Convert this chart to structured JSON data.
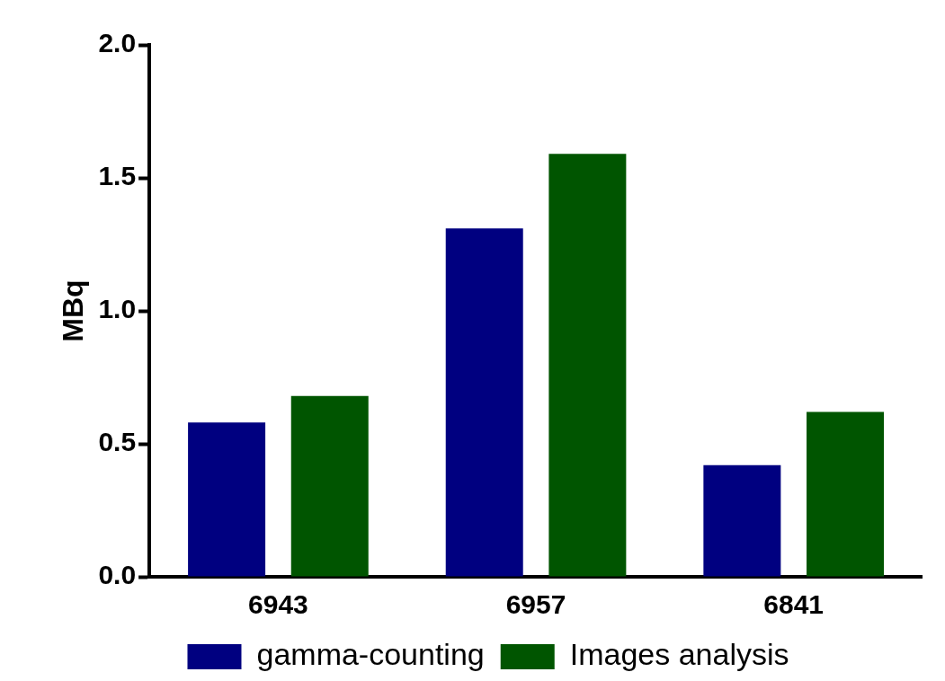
{
  "chart_data": {
    "type": "bar",
    "ylabel": "MBq",
    "categories": [
      "6943",
      "6957",
      "6841"
    ],
    "series": [
      {
        "name": "gamma-counting",
        "color": "#000080",
        "values": [
          0.58,
          1.31,
          0.42
        ]
      },
      {
        "name": "Images analysis",
        "color": "#005500",
        "values": [
          0.68,
          1.59,
          0.62
        ]
      }
    ],
    "ylim": [
      0,
      2.0
    ],
    "yticks": [
      {
        "value": 0,
        "label": "0.0"
      },
      {
        "value": 0.5,
        "label": "0.5"
      },
      {
        "value": 1,
        "label": "1.0"
      },
      {
        "value": 1.5,
        "label": "1.5"
      },
      {
        "value": 2,
        "label": "2.0"
      }
    ],
    "grid": false,
    "legend": "bottom"
  }
}
